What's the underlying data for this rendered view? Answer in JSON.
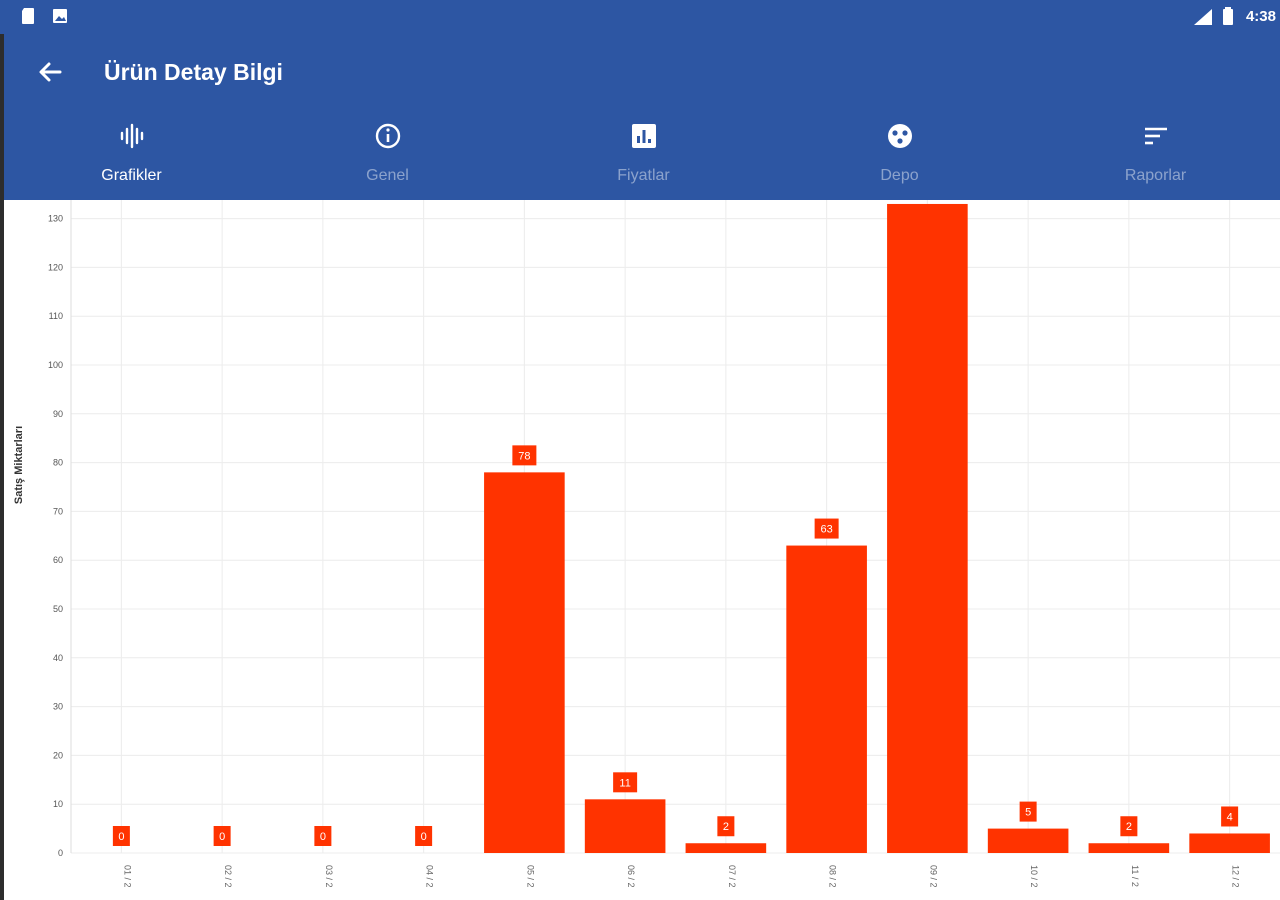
{
  "status_bar": {
    "time": "4:38"
  },
  "app_bar": {
    "title": "Ürün Detay Bilgi"
  },
  "tabs": [
    {
      "label": "Grafikler",
      "icon": "waveform-icon",
      "active": true
    },
    {
      "label": "Genel",
      "icon": "info-icon",
      "active": false
    },
    {
      "label": "Fiyatlar",
      "icon": "bar-chart-icon",
      "active": false
    },
    {
      "label": "Depo",
      "icon": "warehouse-icon",
      "active": false
    },
    {
      "label": "Raporlar",
      "icon": "sort-icon",
      "active": false
    }
  ],
  "colors": {
    "primary": "#2d56a3",
    "bar": "#ff3300",
    "label_bg": "#ff3300"
  },
  "chart_data": {
    "type": "bar",
    "ylabel": "Satış Miktarları",
    "xlabel": "",
    "ylim": [
      0,
      133
    ],
    "yticks": [
      0,
      10,
      20,
      30,
      40,
      50,
      60,
      70,
      80,
      90,
      100,
      110,
      120,
      130
    ],
    "grid": true,
    "categories": [
      "01 / 2",
      "02 / 2",
      "03 / 2",
      "04 / 2",
      "05 / 2",
      "06 / 2",
      "07 / 2",
      "08 / 2",
      "09 / 2",
      "10 / 2",
      "11 / 2",
      "12 / 2"
    ],
    "values": [
      0,
      0,
      0,
      0,
      78,
      11,
      2,
      63,
      135,
      5,
      2,
      4
    ],
    "data_labels": [
      "0",
      "0",
      "0",
      "0",
      "78",
      "11",
      "2",
      "63",
      "",
      "5",
      "2",
      "4"
    ]
  }
}
